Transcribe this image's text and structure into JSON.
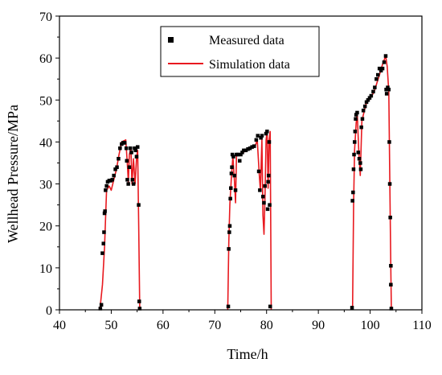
{
  "chart_data": {
    "type": "scatter",
    "title": "",
    "xlabel": "Time/h",
    "ylabel": "Wellhead Pressure/MPa",
    "xlim": [
      40,
      110
    ],
    "ylim": [
      0,
      70
    ],
    "xticks": [
      40,
      50,
      60,
      70,
      80,
      90,
      100,
      110
    ],
    "yticks": [
      0,
      10,
      20,
      30,
      40,
      50,
      60,
      70
    ],
    "x_tick_labels": [
      "40",
      "50",
      "60",
      "70",
      "80",
      "90",
      "100",
      "110"
    ],
    "y_tick_labels": [
      "0",
      "10",
      "20",
      "30",
      "40",
      "50",
      "60",
      "70"
    ],
    "grid": false,
    "legend": {
      "position": "top-center",
      "entries": [
        "Measured data",
        "Simulation data"
      ]
    },
    "series": [
      {
        "name": "Measured data",
        "kind": "scatter",
        "marker": "square",
        "color": "#000000",
        "points": [
          [
            47.9,
            0.3
          ],
          [
            48.1,
            1.2
          ],
          [
            48.3,
            13.5
          ],
          [
            48.5,
            15.8
          ],
          [
            48.6,
            18.5
          ],
          [
            48.7,
            23.0
          ],
          [
            48.8,
            23.5
          ],
          [
            48.9,
            28.5
          ],
          [
            49.1,
            29.5
          ],
          [
            49.3,
            30.5
          ],
          [
            49.6,
            30.8
          ],
          [
            49.9,
            30.8
          ],
          [
            50.2,
            31.0
          ],
          [
            50.5,
            32.0
          ],
          [
            50.8,
            33.5
          ],
          [
            51.1,
            34.0
          ],
          [
            51.4,
            36.0
          ],
          [
            51.7,
            38.5
          ],
          [
            52.0,
            39.5
          ],
          [
            52.3,
            39.8
          ],
          [
            52.6,
            39.8
          ],
          [
            52.9,
            38.5
          ],
          [
            53.0,
            35.5
          ],
          [
            53.1,
            31.0
          ],
          [
            53.3,
            30.0
          ],
          [
            53.5,
            34.0
          ],
          [
            53.7,
            38.5
          ],
          [
            53.9,
            37.5
          ],
          [
            54.1,
            31.0
          ],
          [
            54.3,
            30.0
          ],
          [
            54.5,
            38.5
          ],
          [
            54.7,
            38.0
          ],
          [
            54.9,
            36.5
          ],
          [
            55.1,
            38.8
          ],
          [
            55.3,
            25.0
          ],
          [
            55.4,
            2.0
          ],
          [
            55.5,
            0.3
          ],
          [
            72.6,
            0.8
          ],
          [
            72.7,
            14.5
          ],
          [
            72.8,
            18.5
          ],
          [
            72.9,
            20.0
          ],
          [
            73.0,
            26.5
          ],
          [
            73.1,
            29.0
          ],
          [
            73.2,
            32.5
          ],
          [
            73.3,
            34.0
          ],
          [
            73.4,
            37.0
          ],
          [
            73.6,
            36.5
          ],
          [
            73.8,
            32.0
          ],
          [
            74.0,
            28.5
          ],
          [
            74.2,
            37.0
          ],
          [
            74.5,
            37.0
          ],
          [
            74.8,
            35.5
          ],
          [
            75.0,
            37.0
          ],
          [
            75.3,
            37.5
          ],
          [
            75.6,
            38.0
          ],
          [
            76.0,
            38.0
          ],
          [
            76.4,
            38.3
          ],
          [
            76.8,
            38.5
          ],
          [
            77.2,
            38.8
          ],
          [
            77.6,
            39.0
          ],
          [
            78.0,
            40.5
          ],
          [
            78.3,
            41.5
          ],
          [
            78.5,
            33.0
          ],
          [
            78.7,
            28.5
          ],
          [
            78.9,
            41.0
          ],
          [
            79.1,
            41.5
          ],
          [
            79.3,
            27.0
          ],
          [
            79.5,
            25.5
          ],
          [
            79.7,
            29.5
          ],
          [
            79.9,
            42.0
          ],
          [
            80.1,
            42.5
          ],
          [
            80.2,
            24.0
          ],
          [
            80.3,
            30.5
          ],
          [
            80.4,
            32.0
          ],
          [
            80.5,
            40.0
          ],
          [
            80.6,
            25.0
          ],
          [
            80.7,
            0.8
          ],
          [
            96.5,
            0.5
          ],
          [
            96.6,
            26.0
          ],
          [
            96.7,
            28.0
          ],
          [
            96.8,
            33.5
          ],
          [
            96.9,
            37.0
          ],
          [
            97.0,
            40.0
          ],
          [
            97.1,
            42.5
          ],
          [
            97.2,
            45.5
          ],
          [
            97.3,
            46.5
          ],
          [
            97.5,
            47.0
          ],
          [
            97.7,
            37.5
          ],
          [
            97.9,
            36.0
          ],
          [
            98.1,
            35.0
          ],
          [
            98.2,
            33.5
          ],
          [
            98.3,
            43.5
          ],
          [
            98.5,
            45.5
          ],
          [
            98.7,
            47.5
          ],
          [
            99.0,
            48.5
          ],
          [
            99.3,
            49.5
          ],
          [
            99.6,
            50.0
          ],
          [
            99.9,
            50.5
          ],
          [
            100.2,
            51.0
          ],
          [
            100.6,
            52.0
          ],
          [
            100.9,
            53.0
          ],
          [
            101.2,
            55.0
          ],
          [
            101.5,
            56.0
          ],
          [
            101.8,
            57.5
          ],
          [
            102.1,
            57.0
          ],
          [
            102.4,
            57.5
          ],
          [
            102.7,
            59.0
          ],
          [
            103.0,
            60.5
          ],
          [
            103.1,
            52.5
          ],
          [
            103.2,
            51.5
          ],
          [
            103.4,
            53.0
          ],
          [
            103.6,
            52.5
          ],
          [
            103.7,
            40.0
          ],
          [
            103.8,
            30.0
          ],
          [
            103.9,
            22.0
          ],
          [
            104.0,
            10.5
          ],
          [
            104.0,
            6.0
          ],
          [
            104.1,
            0.3
          ]
        ]
      },
      {
        "name": "Simulation data",
        "kind": "line",
        "color": "#e8191f",
        "segments": [
          [
            [
              47.8,
              0.0
            ],
            [
              48.3,
              6.0
            ],
            [
              48.7,
              15.0
            ],
            [
              49.1,
              28.5
            ],
            [
              49.6,
              29.5
            ],
            [
              50.0,
              28.5
            ],
            [
              50.5,
              31.0
            ],
            [
              51.0,
              33.5
            ],
            [
              51.5,
              37.0
            ],
            [
              52.0,
              40.0
            ],
            [
              52.8,
              40.5
            ],
            [
              53.1,
              35.0
            ],
            [
              53.3,
              30.5
            ],
            [
              53.5,
              37.0
            ],
            [
              53.8,
              38.5
            ],
            [
              54.0,
              30.0
            ],
            [
              54.3,
              36.0
            ],
            [
              54.6,
              30.0
            ],
            [
              54.9,
              36.5
            ],
            [
              55.1,
              38.0
            ],
            [
              55.3,
              20.0
            ],
            [
              55.5,
              0.0
            ]
          ],
          [
            [
              72.5,
              0.0
            ],
            [
              72.7,
              16.0
            ],
            [
              72.9,
              25.0
            ],
            [
              73.2,
              31.5
            ],
            [
              73.5,
              36.5
            ],
            [
              73.8,
              30.5
            ],
            [
              74.0,
              25.5
            ],
            [
              74.2,
              37.0
            ],
            [
              75.0,
              37.0
            ],
            [
              76.0,
              38.0
            ],
            [
              77.0,
              38.5
            ],
            [
              77.8,
              39.0
            ],
            [
              78.2,
              40.5
            ],
            [
              78.6,
              32.0
            ],
            [
              78.8,
              28.5
            ],
            [
              79.1,
              40.5
            ],
            [
              79.3,
              22.5
            ],
            [
              79.5,
              18.0
            ],
            [
              79.7,
              27.5
            ],
            [
              79.9,
              40.5
            ],
            [
              80.1,
              42.5
            ],
            [
              80.3,
              29.0
            ],
            [
              80.5,
              40.5
            ],
            [
              80.7,
              42.5
            ],
            [
              80.9,
              0.0
            ]
          ],
          [
            [
              96.6,
              0.0
            ],
            [
              96.8,
              25.0
            ],
            [
              97.0,
              38.0
            ],
            [
              97.3,
              44.5
            ],
            [
              97.5,
              47.0
            ],
            [
              97.8,
              38.0
            ],
            [
              98.1,
              32.0
            ],
            [
              98.4,
              45.0
            ],
            [
              98.8,
              47.0
            ],
            [
              99.2,
              49.0
            ],
            [
              99.8,
              50.0
            ],
            [
              100.3,
              51.0
            ],
            [
              100.8,
              52.0
            ],
            [
              101.3,
              54.0
            ],
            [
              101.8,
              56.0
            ],
            [
              102.4,
              58.5
            ],
            [
              103.0,
              60.5
            ],
            [
              103.3,
              58.0
            ],
            [
              103.6,
              52.0
            ],
            [
              103.8,
              30.0
            ],
            [
              104.0,
              10.0
            ],
            [
              104.1,
              0.0
            ]
          ]
        ]
      }
    ]
  }
}
